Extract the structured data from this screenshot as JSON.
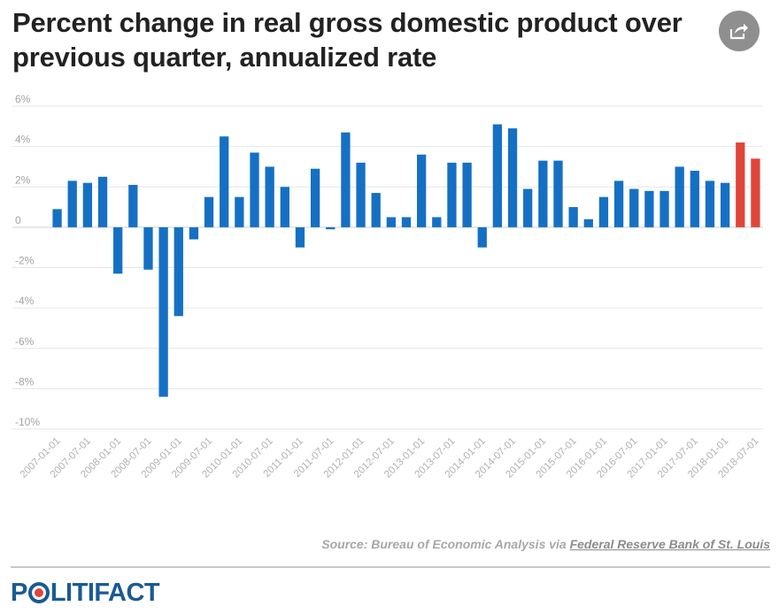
{
  "header": {
    "title": "Percent change in real gross domestic product over previous quarter, annualized rate",
    "share_icon": "share-icon"
  },
  "colors": {
    "bar_default": "#1570c4",
    "bar_highlight": "#e0453a",
    "grid": "#e6e6e6",
    "zero_line": "#cfcfcf",
    "title": "#222222",
    "logo_blue": "#1a5a96",
    "logo_red": "#e0453a"
  },
  "chart_data": {
    "type": "bar",
    "title": "Percent change in real gross domestic product over previous quarter, annualized rate",
    "xlabel": "",
    "ylabel": "",
    "ylim": [
      -10,
      6
    ],
    "y_ticks": [
      6,
      4,
      2,
      0,
      -2,
      -4,
      -6,
      -8,
      -10
    ],
    "y_tick_labels": [
      "6%",
      "4%",
      "2%",
      "0",
      "-2%",
      "-4%",
      "-6%",
      "-8%",
      "-10%"
    ],
    "grid": true,
    "legend": "none",
    "categories": [
      "2007-01-01",
      "2007-04-01",
      "2007-07-01",
      "2007-10-01",
      "2008-01-01",
      "2008-04-01",
      "2008-07-01",
      "2008-10-01",
      "2009-01-01",
      "2009-04-01",
      "2009-07-01",
      "2009-10-01",
      "2010-01-01",
      "2010-04-01",
      "2010-07-01",
      "2010-10-01",
      "2011-01-01",
      "2011-04-01",
      "2011-07-01",
      "2011-10-01",
      "2012-01-01",
      "2012-04-01",
      "2012-07-01",
      "2012-10-01",
      "2013-01-01",
      "2013-04-01",
      "2013-07-01",
      "2013-10-01",
      "2014-01-01",
      "2014-04-01",
      "2014-07-01",
      "2014-10-01",
      "2015-01-01",
      "2015-04-01",
      "2015-07-01",
      "2015-10-01",
      "2016-01-01",
      "2016-04-01",
      "2016-07-01",
      "2016-10-01",
      "2017-01-01",
      "2017-04-01",
      "2017-07-01",
      "2017-10-01",
      "2018-01-01",
      "2018-04-01",
      "2018-07-01"
    ],
    "labeled_categories": [
      "2007-01-01",
      "2007-07-01",
      "2008-01-01",
      "2008-07-01",
      "2009-01-01",
      "2009-07-01",
      "2010-01-01",
      "2010-07-01",
      "2011-01-01",
      "2011-07-01",
      "2012-01-01",
      "2012-07-01",
      "2013-01-01",
      "2013-07-01",
      "2014-01-01",
      "2014-07-01",
      "2015-01-01",
      "2015-07-01",
      "2016-01-01",
      "2016-07-01",
      "2017-01-01",
      "2017-07-01",
      "2018-01-01",
      "2018-07-01"
    ],
    "values": [
      0.9,
      2.3,
      2.2,
      2.5,
      -2.3,
      2.1,
      -2.1,
      -8.4,
      -4.4,
      -0.6,
      1.5,
      4.5,
      1.5,
      3.7,
      3.0,
      2.0,
      -1.0,
      2.9,
      -0.1,
      4.7,
      3.2,
      1.7,
      0.5,
      0.5,
      3.6,
      0.5,
      3.2,
      3.2,
      -1.0,
      5.1,
      4.9,
      1.9,
      3.3,
      3.3,
      1.0,
      0.4,
      1.5,
      2.3,
      1.9,
      1.8,
      1.8,
      3.0,
      2.8,
      2.3,
      2.2,
      4.2,
      3.4
    ],
    "highlighted_categories": [
      "2018-04-01",
      "2018-07-01"
    ]
  },
  "footer": {
    "source_prefix": "Source: Bureau of Economic Analysis via ",
    "source_link": "Federal Reserve Bank of St. Louis",
    "logo_prefix": "P",
    "logo_suffix": "LITIFACT"
  }
}
